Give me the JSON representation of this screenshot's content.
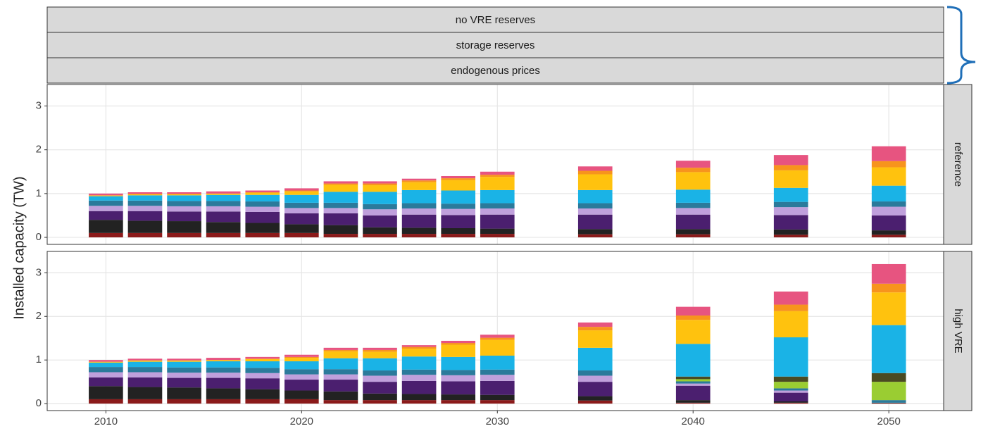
{
  "chart_data": {
    "type": "bar",
    "strips": [
      "no VRE reserves",
      "storage reserves",
      "endogenous prices"
    ],
    "ylabel": "Installed capacity (TW)",
    "x": [
      2010,
      2012,
      2014,
      2016,
      2018,
      2020,
      2022,
      2024,
      2026,
      2028,
      2030,
      2035,
      2040,
      2045,
      2050
    ],
    "xlim": [
      2007,
      2052.8
    ],
    "xticks": [
      2010,
      2020,
      2030,
      2040,
      2050
    ],
    "ylim": [
      -0.16,
      3.49
    ],
    "yticks": [
      0,
      1,
      2,
      3
    ],
    "grid": true,
    "panels": [
      {
        "label": "reference",
        "series": [
          {
            "color": "#8b1a1a",
            "values": [
              0.1,
              0.1,
              0.1,
              0.1,
              0.1,
              0.1,
              0.08,
              0.08,
              0.08,
              0.08,
              0.08,
              0.07,
              0.07,
              0.06,
              0.06
            ]
          },
          {
            "color": "#222222",
            "values": [
              0.3,
              0.28,
              0.27,
              0.25,
              0.23,
              0.2,
              0.2,
              0.15,
              0.14,
              0.13,
              0.12,
              0.12,
              0.12,
              0.12,
              0.1
            ]
          },
          {
            "color": "#4b1f6f",
            "values": [
              0.2,
              0.22,
              0.22,
              0.24,
              0.25,
              0.25,
              0.27,
              0.27,
              0.3,
              0.3,
              0.32,
              0.33,
              0.33,
              0.33,
              0.34
            ]
          },
          {
            "color": "#c0a0dc",
            "values": [
              0.12,
              0.12,
              0.12,
              0.12,
              0.12,
              0.12,
              0.12,
              0.14,
              0.14,
              0.14,
              0.14,
              0.14,
              0.15,
              0.18,
              0.2
            ]
          },
          {
            "color": "#2b7a9b",
            "values": [
              0.12,
              0.12,
              0.12,
              0.12,
              0.12,
              0.12,
              0.12,
              0.12,
              0.12,
              0.12,
              0.12,
              0.12,
              0.12,
              0.12,
              0.12
            ]
          },
          {
            "color": "#1ab3e6",
            "values": [
              0.1,
              0.12,
              0.13,
              0.14,
              0.15,
              0.18,
              0.25,
              0.28,
              0.3,
              0.3,
              0.3,
              0.3,
              0.3,
              0.32,
              0.36
            ]
          },
          {
            "color": "#ffc20e",
            "values": [
              0.02,
              0.03,
              0.03,
              0.03,
              0.05,
              0.08,
              0.16,
              0.15,
              0.18,
              0.24,
              0.3,
              0.36,
              0.4,
              0.4,
              0.42
            ]
          },
          {
            "color": "#f7941d",
            "values": [
              0,
              0,
              0,
              0,
              0.01,
              0.02,
              0.03,
              0.04,
              0.04,
              0.04,
              0.05,
              0.08,
              0.1,
              0.12,
              0.14
            ]
          },
          {
            "color": "#e75480",
            "values": [
              0.04,
              0.04,
              0.04,
              0.05,
              0.04,
              0.05,
              0.05,
              0.05,
              0.04,
              0.05,
              0.07,
              0.1,
              0.16,
              0.23,
              0.34
            ]
          }
        ]
      },
      {
        "label": "high VRE",
        "series": [
          {
            "color": "#8b1a1a",
            "values": [
              0.1,
              0.1,
              0.1,
              0.1,
              0.1,
              0.1,
              0.08,
              0.08,
              0.08,
              0.08,
              0.08,
              0.07,
              0.02,
              0.02,
              0.01
            ]
          },
          {
            "color": "#222222",
            "values": [
              0.3,
              0.28,
              0.27,
              0.25,
              0.23,
              0.2,
              0.2,
              0.15,
              0.14,
              0.13,
              0.12,
              0.1,
              0.06,
              0.03,
              0.01
            ]
          },
          {
            "color": "#4b1f6f",
            "values": [
              0.2,
              0.22,
              0.22,
              0.24,
              0.25,
              0.25,
              0.27,
              0.27,
              0.3,
              0.3,
              0.32,
              0.33,
              0.33,
              0.2,
              0
            ]
          },
          {
            "color": "#c0a0dc",
            "values": [
              0.12,
              0.12,
              0.12,
              0.12,
              0.12,
              0.12,
              0.12,
              0.14,
              0.14,
              0.14,
              0.14,
              0.14,
              0.05,
              0.05,
              0
            ]
          },
          {
            "color": "#2b7a9b",
            "values": [
              0.12,
              0.12,
              0.12,
              0.12,
              0.12,
              0.12,
              0.12,
              0.12,
              0.12,
              0.12,
              0.12,
              0.12,
              0.05,
              0.05,
              0.06
            ]
          },
          {
            "color": "#9acd32",
            "values": [
              0,
              0,
              0,
              0,
              0,
              0,
              0,
              0,
              0,
              0,
              0,
              0,
              0.05,
              0.15,
              0.42
            ]
          },
          {
            "color": "#4a4a22",
            "values": [
              0,
              0,
              0,
              0,
              0,
              0,
              0,
              0,
              0,
              0,
              0,
              0,
              0.06,
              0.12,
              0.2
            ]
          },
          {
            "color": "#1ab3e6",
            "values": [
              0.1,
              0.12,
              0.13,
              0.14,
              0.15,
              0.18,
              0.25,
              0.28,
              0.3,
              0.3,
              0.32,
              0.52,
              0.75,
              0.9,
              1.1
            ]
          },
          {
            "color": "#ffc20e",
            "values": [
              0.02,
              0.03,
              0.03,
              0.03,
              0.05,
              0.08,
              0.16,
              0.15,
              0.18,
              0.28,
              0.36,
              0.4,
              0.55,
              0.6,
              0.75
            ]
          },
          {
            "color": "#f7941d",
            "values": [
              0,
              0,
              0,
              0,
              0.01,
              0.02,
              0.03,
              0.04,
              0.04,
              0.04,
              0.05,
              0.08,
              0.1,
              0.15,
              0.2
            ]
          },
          {
            "color": "#e75480",
            "values": [
              0.04,
              0.04,
              0.04,
              0.05,
              0.04,
              0.05,
              0.05,
              0.05,
              0.04,
              0.05,
              0.07,
              0.1,
              0.2,
              0.3,
              0.45
            ]
          }
        ]
      }
    ]
  }
}
